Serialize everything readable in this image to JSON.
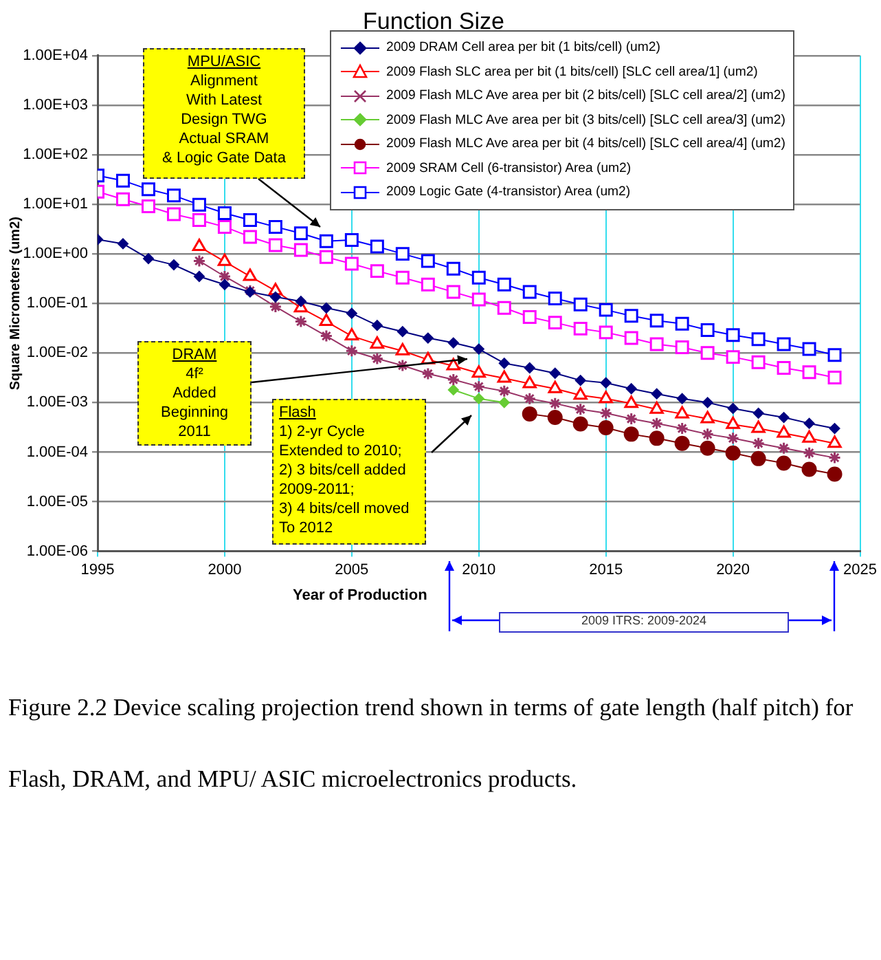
{
  "chart_data": {
    "type": "line",
    "title": "Function Size",
    "xlabel": "Year of Production",
    "ylabel": "Square Micrometers (um2)",
    "xlim": [
      1995,
      2025
    ],
    "xticks": [
      1995,
      2000,
      2005,
      2010,
      2015,
      2020,
      2025
    ],
    "ylim": [
      1e-06,
      10000
    ],
    "yticks": [
      {
        "value": 1e-06,
        "label": "1.00E-06"
      },
      {
        "value": 1e-05,
        "label": "1.00E-05"
      },
      {
        "value": 0.0001,
        "label": "1.00E-04"
      },
      {
        "value": 0.001,
        "label": "1.00E-03"
      },
      {
        "value": 0.01,
        "label": "1.00E-02"
      },
      {
        "value": 0.1,
        "label": "1.00E-01"
      },
      {
        "value": 1,
        "label": "1.00E+00"
      },
      {
        "value": 10,
        "label": "1.00E+01"
      },
      {
        "value": 100,
        "label": "1.00E+02"
      },
      {
        "value": 1000,
        "label": "1.00E+03"
      },
      {
        "value": 10000,
        "label": "1.00E+04"
      }
    ],
    "log": "y",
    "grid": true,
    "legend": "top right",
    "series": [
      {
        "name": "2009 DRAM Cell area per bit (1 bits/cell) (um2)",
        "color": "#000080",
        "marker": "diamond",
        "x": [
          1995,
          1996,
          1997,
          1998,
          1999,
          2000,
          2001,
          2002,
          2003,
          2004,
          2005,
          2006,
          2007,
          2008,
          2009,
          2010,
          2011,
          2012,
          2013,
          2014,
          2015,
          2016,
          2017,
          2018,
          2019,
          2020,
          2021,
          2022,
          2023,
          2024
        ],
        "values": [
          1.95,
          1.6,
          0.8,
          0.6,
          0.35,
          0.24,
          0.17,
          0.135,
          0.11,
          0.081,
          0.063,
          0.036,
          0.027,
          0.02,
          0.016,
          0.012,
          0.0062,
          0.005,
          0.0039,
          0.0028,
          0.0025,
          0.0019,
          0.0015,
          0.0012,
          0.001,
          0.00076,
          0.00061,
          0.0005,
          0.00038,
          0.0003
        ]
      },
      {
        "name": "2009 Flash SLC area per bit (1 bits/cell) [SLC cell area/1] (um2)",
        "color": "#ff0000",
        "marker": "triangle",
        "x": [
          1999,
          2000,
          2001,
          2002,
          2003,
          2004,
          2005,
          2006,
          2007,
          2008,
          2009,
          2010,
          2011,
          2012,
          2013,
          2014,
          2015,
          2016,
          2017,
          2018,
          2019,
          2020,
          2021,
          2022,
          2023,
          2024
        ],
        "values": [
          1.4,
          0.7,
          0.35,
          0.18,
          0.081,
          0.043,
          0.022,
          0.015,
          0.011,
          0.0073,
          0.0055,
          0.0039,
          0.0031,
          0.0024,
          0.0019,
          0.0014,
          0.0012,
          0.00096,
          0.00073,
          0.00059,
          0.00047,
          0.00036,
          0.0003,
          0.00024,
          0.00019,
          0.00015
        ]
      },
      {
        "name": "2009 Flash MLC Ave area per bit (2 bits/cell) [SLC cell area/2] (um2)",
        "color": "#993366",
        "marker": "cross",
        "x": [
          1999,
          2000,
          2001,
          2002,
          2003,
          2004,
          2005,
          2006,
          2007,
          2008,
          2009,
          2010,
          2011,
          2012,
          2013,
          2014,
          2015,
          2016,
          2017,
          2018,
          2019,
          2020,
          2021,
          2022,
          2023,
          2024
        ],
        "values": [
          0.72,
          0.35,
          0.18,
          0.086,
          0.043,
          0.022,
          0.011,
          0.0077,
          0.0056,
          0.0038,
          0.0029,
          0.0021,
          0.0017,
          0.0012,
          0.00096,
          0.00073,
          0.00061,
          0.00047,
          0.00038,
          0.0003,
          0.00023,
          0.00019,
          0.00015,
          0.00012,
          9.6e-05,
          7.7e-05
        ]
      },
      {
        "name": "2009 Flash MLC Ave area per bit (3 bits/cell) [SLC cell area/3] (um2)",
        "color": "#66cc33",
        "marker": "diamond",
        "x": [
          2009,
          2010,
          2011
        ],
        "values": [
          0.0018,
          0.0012,
          0.001
        ]
      },
      {
        "name": "2009 Flash MLC Ave area per bit (4 bits/cell) [SLC cell area/4] (um2)",
        "color": "#800000",
        "marker": "circle",
        "x": [
          2012,
          2013,
          2014,
          2015,
          2016,
          2017,
          2018,
          2019,
          2020,
          2021,
          2022,
          2023,
          2024
        ],
        "values": [
          0.00059,
          0.0005,
          0.00037,
          0.00031,
          0.00023,
          0.00019,
          0.00015,
          0.00012,
          9.6e-05,
          7.4e-05,
          6e-05,
          4.5e-05,
          3.6e-05
        ]
      },
      {
        "name": "2009 SRAM Cell (6-transistor) Area (um2)",
        "color": "#ff00ff",
        "marker": "square",
        "x": [
          1995,
          1996,
          1997,
          1998,
          1999,
          2000,
          2001,
          2002,
          2003,
          2004,
          2005,
          2006,
          2007,
          2008,
          2009,
          2010,
          2011,
          2012,
          2013,
          2014,
          2015,
          2016,
          2017,
          2018,
          2019,
          2020,
          2021,
          2022,
          2023,
          2024
        ],
        "values": [
          18,
          12.6,
          9.1,
          6.3,
          4.8,
          3.5,
          2.2,
          1.5,
          1.2,
          0.86,
          0.63,
          0.45,
          0.33,
          0.24,
          0.17,
          0.12,
          0.081,
          0.053,
          0.041,
          0.031,
          0.026,
          0.02,
          0.015,
          0.013,
          0.01,
          0.0083,
          0.0065,
          0.005,
          0.0041,
          0.0032
        ]
      },
      {
        "name": "2009 Logic Gate (4-transistor) Area (um2)",
        "color": "#0000ff",
        "marker": "square",
        "x": [
          1995,
          1996,
          1997,
          1998,
          1999,
          2000,
          2001,
          2002,
          2003,
          2004,
          2005,
          2006,
          2007,
          2008,
          2009,
          2010,
          2011,
          2012,
          2013,
          2014,
          2015,
          2016,
          2017,
          2018,
          2019,
          2020,
          2021,
          2022,
          2023,
          2024
        ],
        "values": [
          38,
          30,
          20,
          15,
          9.8,
          6.6,
          4.8,
          3.5,
          2.6,
          1.8,
          1.9,
          1.4,
          1.0,
          0.72,
          0.5,
          0.33,
          0.24,
          0.17,
          0.126,
          0.095,
          0.074,
          0.056,
          0.045,
          0.039,
          0.029,
          0.023,
          0.019,
          0.015,
          0.012,
          0.0091
        ]
      }
    ],
    "annotations": [
      "MPU/ASIC\nAlignment\nWith Latest\nDesign TWG\nActual SRAM\n& Logic Gate Data",
      "DRAM\n4f²\nAdded\nBeginning\n2011",
      "Flash\n1) 2-yr Cycle\nExtended to 2010;\n2) 3 bits/cell added\n2009-2011;\n3) 4 bits/cell moved\nTo 2012",
      "2009 ITRS:  2009-2024",
      "Figure 2.2 Device scaling projection trend shown in terms of gate length (half pitch) for Flash, DRAM, and MPU/ ASIC microelectronics products."
    ]
  }
}
